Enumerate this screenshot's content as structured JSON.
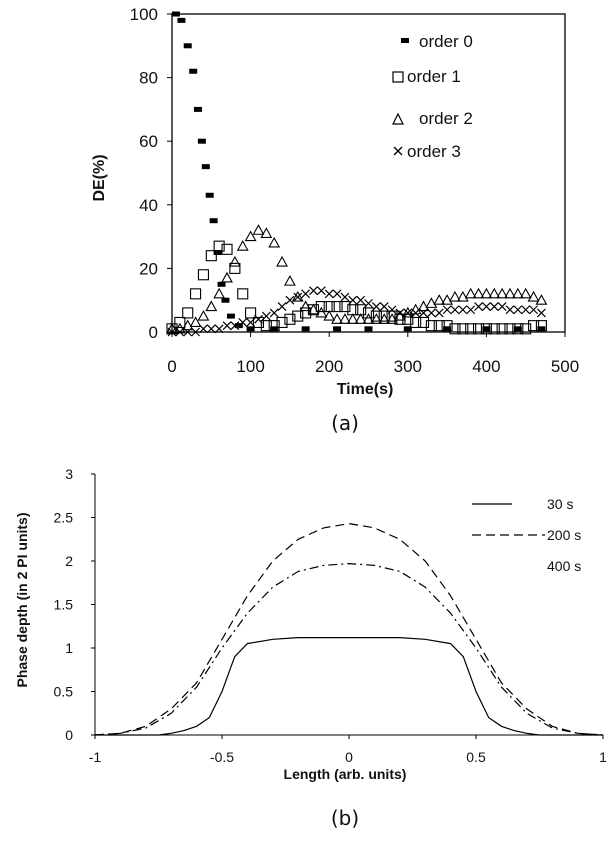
{
  "chart_data": [
    {
      "type": "scatter",
      "caption": "(a)",
      "xlabel": "Time(s)",
      "ylabel": "DE(%)",
      "xlim": [
        0,
        500
      ],
      "ylim": [
        0,
        100
      ],
      "xticks": [
        "0",
        "100",
        "200",
        "300",
        "400",
        "500"
      ],
      "yticks": [
        "0",
        "20",
        "40",
        "60",
        "80",
        "100"
      ],
      "grid": false,
      "legend_position": "top-right",
      "series": [
        {
          "name": "order 0",
          "marker": "filled-square",
          "x": [
            5,
            12,
            20,
            27,
            33,
            38,
            43,
            48,
            53,
            58,
            63,
            68,
            75,
            85,
            100,
            130,
            170,
            210,
            250,
            300,
            350,
            400,
            440,
            470
          ],
          "y": [
            100,
            98,
            90,
            82,
            70,
            60,
            52,
            43,
            35,
            25,
            15,
            10,
            5,
            2,
            1,
            1,
            1,
            1,
            1,
            1,
            1,
            1,
            1,
            1
          ]
        },
        {
          "name": "order 1",
          "marker": "open-square",
          "x": [
            0,
            10,
            20,
            30,
            40,
            50,
            60,
            70,
            80,
            90,
            100,
            110,
            120,
            130,
            140,
            150,
            160,
            170,
            180,
            190,
            200,
            210,
            220,
            230,
            240,
            250,
            260,
            270,
            280,
            290,
            300,
            310,
            320,
            330,
            340,
            350,
            360,
            370,
            380,
            390,
            400,
            410,
            420,
            430,
            440,
            450,
            460,
            470
          ],
          "y": [
            1,
            3,
            6,
            12,
            18,
            24,
            27,
            26,
            20,
            12,
            6,
            3,
            2,
            2,
            3,
            4,
            5,
            6,
            7,
            8,
            8,
            8,
            8,
            7,
            7,
            6,
            5,
            5,
            5,
            4,
            4,
            3,
            3,
            2,
            2,
            2,
            1,
            1,
            1,
            1,
            1,
            1,
            1,
            1,
            1,
            1,
            2,
            2
          ]
        },
        {
          "name": "order 2",
          "marker": "open-triangle",
          "x": [
            0,
            10,
            20,
            30,
            40,
            50,
            60,
            70,
            80,
            90,
            100,
            110,
            120,
            130,
            140,
            150,
            160,
            170,
            180,
            190,
            200,
            210,
            220,
            230,
            240,
            250,
            260,
            270,
            280,
            290,
            300,
            310,
            320,
            330,
            340,
            350,
            360,
            370,
            380,
            390,
            400,
            410,
            420,
            430,
            440,
            450,
            460,
            470
          ],
          "y": [
            1,
            1,
            2,
            3,
            5,
            8,
            12,
            17,
            22,
            27,
            30,
            32,
            31,
            28,
            22,
            16,
            11,
            8,
            7,
            6,
            5,
            4,
            4,
            4,
            4,
            4,
            4,
            4,
            4,
            5,
            6,
            7,
            8,
            9,
            10,
            10,
            11,
            11,
            12,
            12,
            12,
            12,
            12,
            12,
            12,
            12,
            11,
            10
          ]
        },
        {
          "name": "order 3",
          "marker": "x",
          "x": [
            0,
            10,
            20,
            30,
            40,
            50,
            60,
            70,
            80,
            90,
            100,
            110,
            120,
            130,
            140,
            150,
            160,
            170,
            180,
            190,
            200,
            210,
            220,
            230,
            240,
            250,
            260,
            270,
            280,
            290,
            300,
            310,
            320,
            330,
            340,
            350,
            360,
            370,
            380,
            390,
            400,
            410,
            420,
            430,
            440,
            450,
            460,
            470
          ],
          "y": [
            0,
            0,
            0,
            0,
            1,
            1,
            1,
            2,
            2,
            3,
            3,
            4,
            5,
            6,
            8,
            10,
            11,
            12,
            13,
            13,
            12,
            12,
            11,
            10,
            10,
            9,
            8,
            8,
            7,
            6,
            6,
            6,
            6,
            6,
            6,
            7,
            7,
            7,
            7,
            8,
            8,
            8,
            8,
            7,
            7,
            7,
            7,
            6
          ]
        }
      ]
    },
    {
      "type": "line",
      "caption": "(b)",
      "xlabel": "Length (arb. units)",
      "ylabel": "Phase depth (in 2 PI units)",
      "xlim": [
        -1,
        1
      ],
      "ylim": [
        0,
        3
      ],
      "xticks": [
        "-1",
        "-0.5",
        "0",
        "0.5",
        "1"
      ],
      "yticks": [
        "0",
        "0.5",
        "1",
        "1.5",
        "2",
        "2.5",
        "3"
      ],
      "grid": false,
      "legend_position": "top-right",
      "series": [
        {
          "name": "30 s",
          "style": "solid",
          "x": [
            -1,
            -0.75,
            -0.7,
            -0.65,
            -0.6,
            -0.55,
            -0.5,
            -0.45,
            -0.4,
            -0.3,
            -0.2,
            -0.1,
            0,
            0.1,
            0.2,
            0.3,
            0.4,
            0.45,
            0.5,
            0.55,
            0.6,
            0.65,
            0.7,
            0.75,
            1
          ],
          "y": [
            0,
            0,
            0.02,
            0.05,
            0.1,
            0.2,
            0.5,
            0.9,
            1.05,
            1.1,
            1.12,
            1.12,
            1.12,
            1.12,
            1.12,
            1.1,
            1.05,
            0.9,
            0.5,
            0.2,
            0.1,
            0.05,
            0.02,
            0,
            0
          ]
        },
        {
          "name": "200 s",
          "style": "dashed",
          "x": [
            -1,
            -0.9,
            -0.8,
            -0.7,
            -0.6,
            -0.5,
            -0.4,
            -0.3,
            -0.2,
            -0.1,
            0,
            0.1,
            0.2,
            0.3,
            0.4,
            0.5,
            0.6,
            0.7,
            0.8,
            0.9,
            1
          ],
          "y": [
            0,
            0.02,
            0.1,
            0.3,
            0.6,
            1.1,
            1.6,
            2.0,
            2.25,
            2.38,
            2.43,
            2.38,
            2.25,
            2.0,
            1.6,
            1.1,
            0.6,
            0.3,
            0.1,
            0.02,
            0
          ]
        },
        {
          "name": "400 s",
          "style": "dash-dot",
          "x": [
            -1,
            -0.9,
            -0.8,
            -0.7,
            -0.6,
            -0.5,
            -0.4,
            -0.3,
            -0.2,
            -0.1,
            0,
            0.1,
            0.2,
            0.3,
            0.4,
            0.5,
            0.6,
            0.7,
            0.8,
            0.9,
            1
          ],
          "y": [
            0,
            0.02,
            0.08,
            0.25,
            0.55,
            1.0,
            1.4,
            1.7,
            1.88,
            1.95,
            1.97,
            1.95,
            1.88,
            1.7,
            1.4,
            1.0,
            0.55,
            0.25,
            0.08,
            0.02,
            0
          ]
        }
      ]
    }
  ]
}
